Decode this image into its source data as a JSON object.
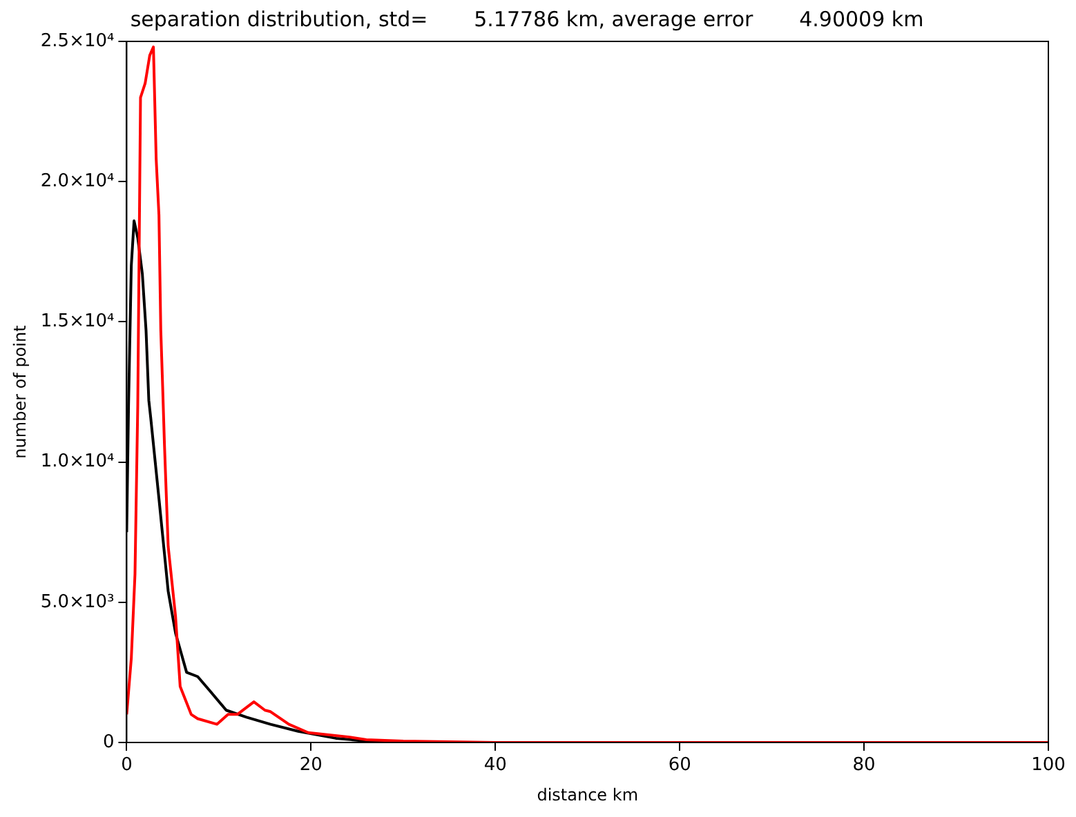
{
  "chart_data": {
    "type": "line",
    "title": "separation distribution, std=       5.17786 km, average error       4.90009 km",
    "xlabel": "distance km",
    "ylabel": "number of point",
    "xlim": [
      0,
      100
    ],
    "xticks": [
      0,
      20,
      40,
      60,
      80,
      100
    ],
    "ylim": [
      0,
      25000
    ],
    "yticks": [
      0,
      {
        "value": 5000,
        "label": "5.0×10³"
      },
      {
        "value": 10000,
        "label": "1.0×10⁴"
      },
      {
        "value": 15000,
        "label": "1.5×10⁴"
      },
      {
        "value": 20000,
        "label": "2.0×10⁴"
      },
      {
        "value": 25000,
        "label": "2.5×10⁴"
      }
    ],
    "grid": false,
    "legend": false,
    "marker": "none",
    "line_style": "solid",
    "series": [
      {
        "color": "#000000",
        "x": [
          0,
          0.2,
          0.5,
          0.8,
          1.2,
          1.7,
          2.1,
          2.4,
          2.6,
          3.5,
          4.5,
          5.3,
          6.5,
          7.7,
          9,
          10.8,
          13,
          15.6,
          18.6,
          22.7,
          26,
          30,
          40,
          60,
          80,
          100
        ],
        "values": [
          7500,
          12000,
          17000,
          18600,
          18000,
          16700,
          14700,
          12200,
          11600,
          8700,
          5400,
          3900,
          2500,
          2350,
          1850,
          1150,
          900,
          650,
          400,
          150,
          50,
          0,
          0,
          0,
          0,
          0
        ]
      },
      {
        "color": "#ff0000",
        "x": [
          0,
          0.5,
          0.9,
          1.2,
          1.5,
          2,
          2.5,
          2.9,
          3.2,
          3.5,
          3.7,
          3.9,
          4.1,
          4.5,
          5.3,
          5.8,
          7,
          7.7,
          9.8,
          11,
          12,
          13.8,
          15,
          15.6,
          17.6,
          19.7,
          24,
          26,
          30,
          40,
          60,
          80,
          100
        ],
        "values": [
          1000,
          3000,
          6000,
          12000,
          23000,
          23500,
          24500,
          24800,
          20800,
          18800,
          14700,
          12700,
          10600,
          7000,
          4500,
          2000,
          1000,
          850,
          650,
          1000,
          1000,
          1450,
          1150,
          1100,
          650,
          350,
          200,
          100,
          50,
          0,
          0,
          0,
          0
        ]
      }
    ]
  }
}
